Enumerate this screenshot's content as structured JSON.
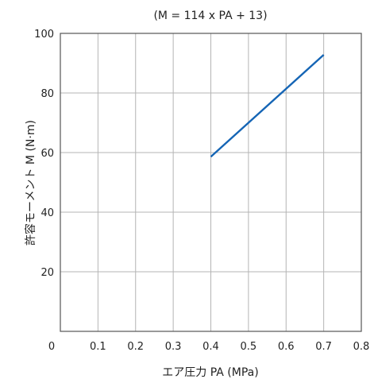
{
  "chart_data": {
    "type": "line",
    "title": "(M = 114 x PA + 13)",
    "xlabel": "エア圧力 PA (MPa)",
    "ylabel": "許容モーメント M (N·m)",
    "xlim": [
      0,
      0.8
    ],
    "ylim": [
      0,
      100
    ],
    "x_ticks": [
      0,
      0.1,
      0.2,
      0.3,
      0.4,
      0.5,
      0.6,
      0.7,
      0.8
    ],
    "x_tick_labels": [
      "0",
      "0.1",
      "0.2",
      "0.3",
      "0.4",
      "0.5",
      "0.6",
      "0.7",
      "0.8"
    ],
    "y_ticks": [
      20,
      40,
      60,
      80,
      100
    ],
    "y_tick_labels": [
      "20",
      "40",
      "60",
      "80",
      "100"
    ],
    "grid": true,
    "series": [
      {
        "x": [
          0.4,
          0.7
        ],
        "y": [
          58.6,
          92.8
        ],
        "color": "#1565b5"
      }
    ],
    "colors": {
      "grid": "#b4b4b4",
      "axis": "#555555",
      "text": "#222222"
    }
  }
}
